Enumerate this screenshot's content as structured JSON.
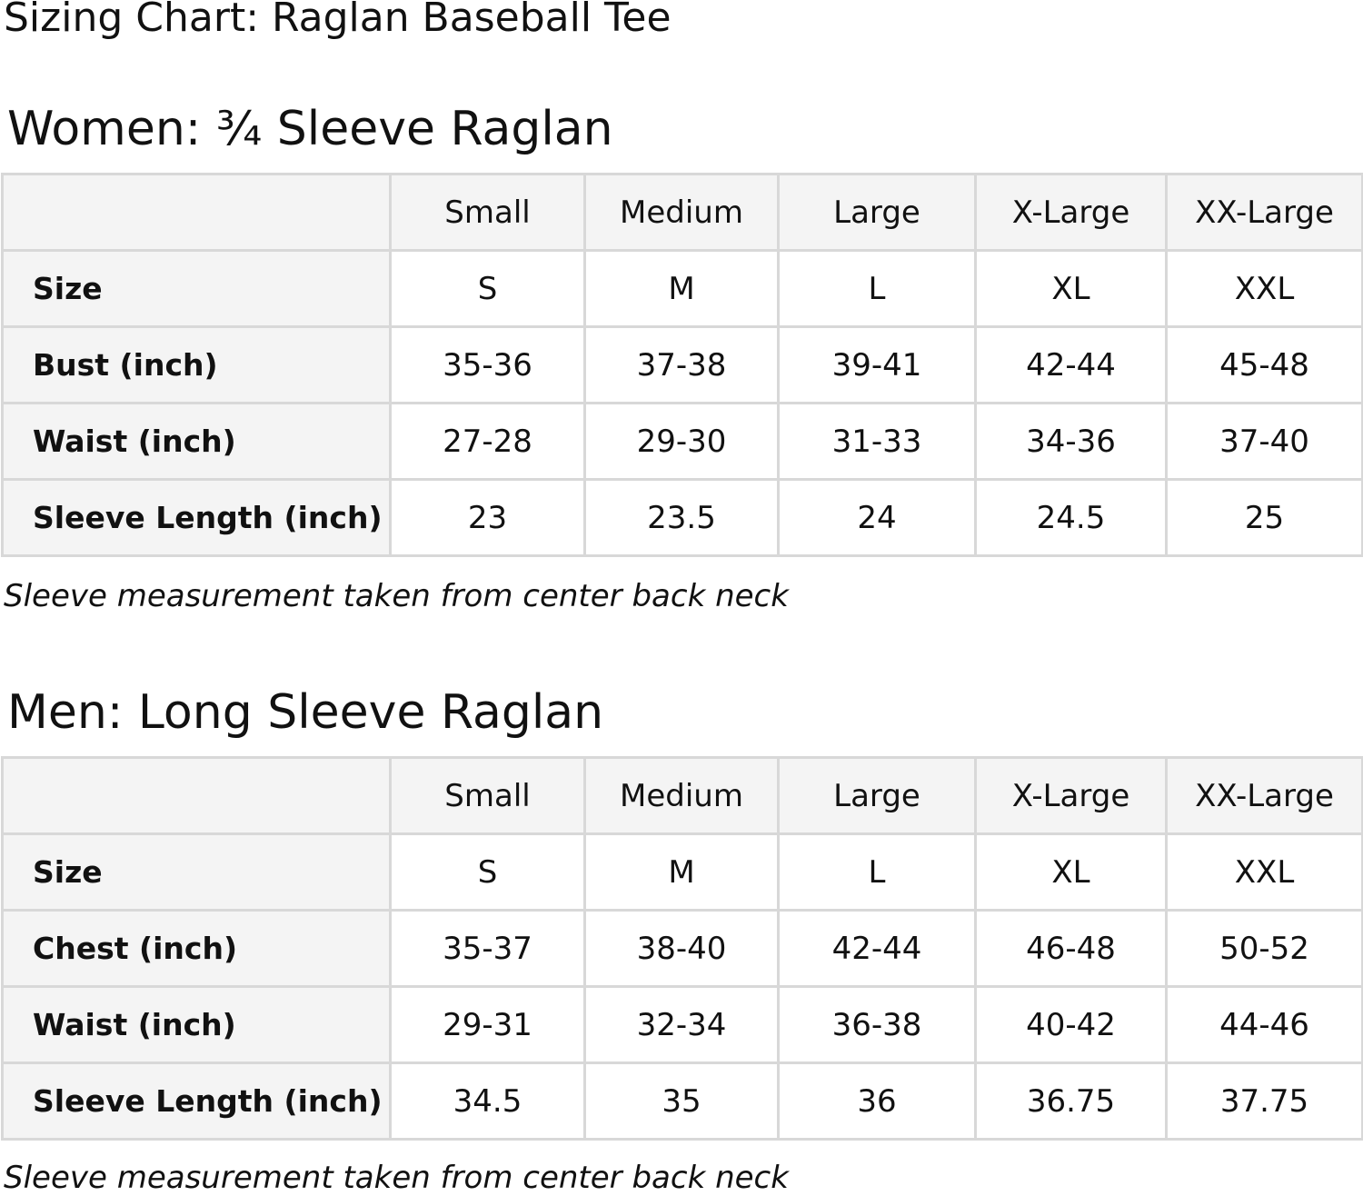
{
  "title": "Sizing Chart: Raglan Baseball Tee",
  "sections": [
    {
      "heading": "Women: ¾ Sleeve Raglan",
      "columns": [
        "Small",
        "Medium",
        "Large",
        "X-Large",
        "XX-Large"
      ],
      "rows": [
        {
          "label": "Size",
          "cells": [
            "S",
            "M",
            "L",
            "XL",
            "XXL"
          ]
        },
        {
          "label": "Bust (inch)",
          "cells": [
            "35-36",
            "37-38",
            "39-41",
            "42-44",
            "45-48"
          ]
        },
        {
          "label": "Waist (inch)",
          "cells": [
            "27-28",
            "29-30",
            "31-33",
            "34-36",
            "37-40"
          ]
        },
        {
          "label": "Sleeve Length (inch)",
          "cells": [
            "23",
            "23.5",
            "24",
            "24.5",
            "25"
          ]
        }
      ],
      "note": "Sleeve measurement taken from center back neck"
    },
    {
      "heading": "Men: Long Sleeve Raglan",
      "columns": [
        "Small",
        "Medium",
        "Large",
        "X-Large",
        "XX-Large"
      ],
      "rows": [
        {
          "label": "Size",
          "cells": [
            "S",
            "M",
            "L",
            "XL",
            "XXL"
          ]
        },
        {
          "label": "Chest (inch)",
          "cells": [
            "35-37",
            "38-40",
            "42-44",
            "46-48",
            "50-52"
          ]
        },
        {
          "label": "Waist (inch)",
          "cells": [
            "29-31",
            "32-34",
            "36-38",
            "40-42",
            "44-46"
          ]
        },
        {
          "label": "Sleeve Length (inch)",
          "cells": [
            "34.5",
            "35",
            "36",
            "36.75",
            "37.75"
          ]
        }
      ],
      "note": "Sleeve measurement taken from center back neck"
    }
  ]
}
